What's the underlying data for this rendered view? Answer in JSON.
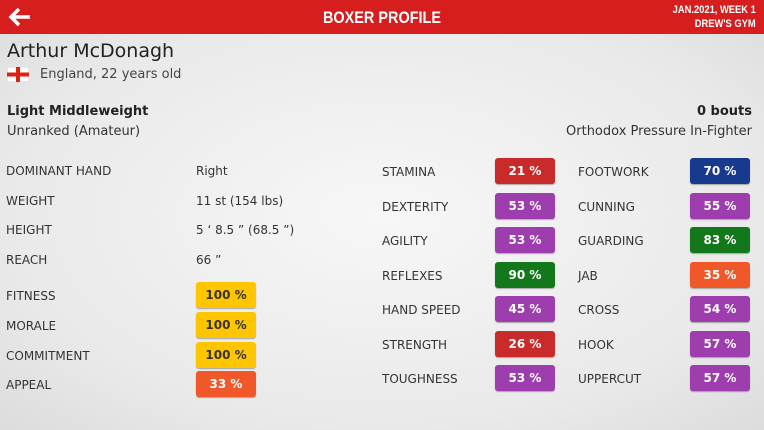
{
  "header": {
    "title": "BOXER PROFILE",
    "date": "JAN.2021, WEEK 1",
    "gym": "DREW'S GYM"
  },
  "boxer": {
    "name": "Arthur McDonagh",
    "origin": "England, 22 years old",
    "weight_class": "Light Middleweight",
    "bouts": "0 bouts",
    "rank": "Unranked (Amateur)",
    "style": "Orthodox Pressure In-Fighter"
  },
  "attributes": [
    {
      "label": "DOMINANT HAND",
      "value": "Right"
    },
    {
      "label": "WEIGHT",
      "value": "11 st (154 lbs)"
    },
    {
      "label": "HEIGHT",
      "value": "5 ‘ 8.5 ” (68.5 ”)"
    },
    {
      "label": "REACH",
      "value": "66 ”"
    },
    {
      "label": "FITNESS",
      "value": "100 %",
      "color": "#ffc600"
    },
    {
      "label": "MORALE",
      "value": "100 %",
      "color": "#ffc600"
    },
    {
      "label": "COMMITMENT",
      "value": "100 %",
      "color": "#ffc600"
    },
    {
      "label": "APPEAL",
      "value": "33 %",
      "color": "#f0582a"
    }
  ],
  "physical": [
    {
      "label": "STAMINA",
      "value": "21 %",
      "color": "#c92a2a"
    },
    {
      "label": "DEXTERITY",
      "value": "53 %",
      "color": "#9d3dae"
    },
    {
      "label": "AGILITY",
      "value": "53 %",
      "color": "#9d3dae"
    },
    {
      "label": "REFLEXES",
      "value": "90 %",
      "color": "#13781c"
    },
    {
      "label": "HAND SPEED",
      "value": "45 %",
      "color": "#9d3dae"
    },
    {
      "label": "STRENGTH",
      "value": "26 %",
      "color": "#c92a2a"
    },
    {
      "label": "TOUGHNESS",
      "value": "53 %",
      "color": "#9d3dae"
    }
  ],
  "skills": [
    {
      "label": "FOOTWORK",
      "value": "70 %",
      "color": "#173a8e"
    },
    {
      "label": "CUNNING",
      "value": "55 %",
      "color": "#9d3dae"
    },
    {
      "label": "GUARDING",
      "value": "83 %",
      "color": "#13781c"
    },
    {
      "label": "JAB",
      "value": "35 %",
      "color": "#f0582a"
    },
    {
      "label": "CROSS",
      "value": "54 %",
      "color": "#9d3dae"
    },
    {
      "label": "HOOK",
      "value": "57 %",
      "color": "#9d3dae"
    },
    {
      "label": "UPPERCUT",
      "value": "57 %",
      "color": "#9d3dae"
    }
  ]
}
